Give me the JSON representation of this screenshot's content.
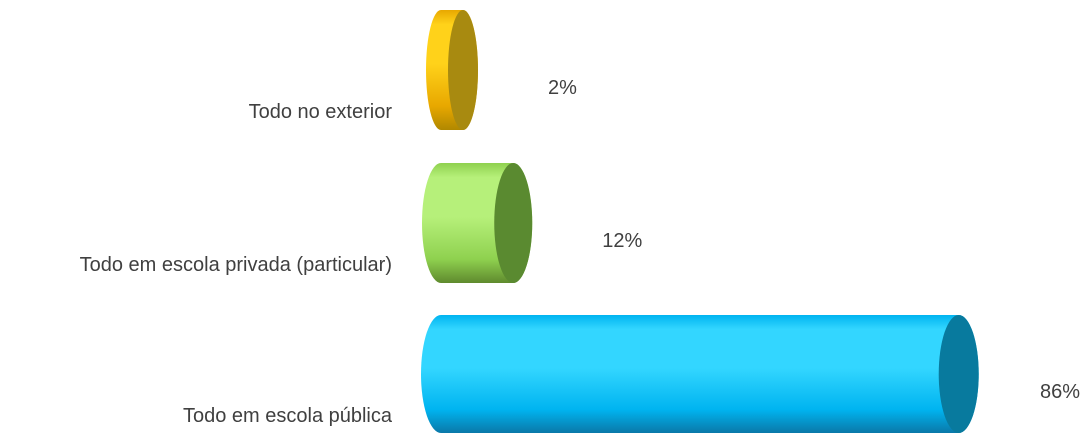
{
  "chart_data": {
    "type": "bar",
    "orientation": "horizontal",
    "style": "3d-cylinder",
    "categories": [
      "Todo no exterior",
      "Todo em escola privada (particular)",
      "Todo em escola pública"
    ],
    "values": [
      2,
      12,
      86
    ],
    "value_labels": [
      "2%",
      "12%",
      "86%"
    ],
    "xlim": [
      0,
      100
    ],
    "grid": false,
    "legend": "none",
    "colors": [
      {
        "light": "#ffd21a",
        "main": "#e8a800",
        "dark": "#b08800",
        "cap": "#a88a10"
      },
      {
        "light": "#b6f07a",
        "main": "#8fd14f",
        "dark": "#5f8a2e",
        "cap": "#5a8a30"
      },
      {
        "light": "#33d6ff",
        "main": "#00b4f0",
        "dark": "#0a78a8",
        "cap": "#087a9e"
      }
    ]
  }
}
